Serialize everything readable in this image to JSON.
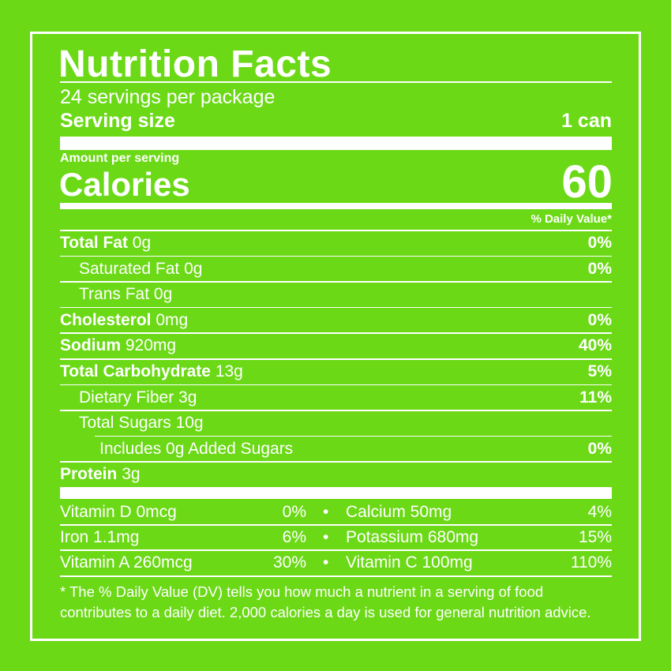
{
  "header": {
    "title": "Nutrition Facts",
    "servings": "24 servings per package",
    "serving_size_label": "Serving size",
    "serving_size_value": "1 can"
  },
  "calories": {
    "amount_label": "Amount per serving",
    "label": "Calories",
    "value": 60
  },
  "daily_value_header": "% Daily Value*",
  "nutrients": [
    {
      "name": "Total Fat",
      "amount": "0g",
      "dv": "0%"
    },
    {
      "name": "Saturated Fat",
      "amount": "0g",
      "dv": "0%"
    },
    {
      "name": "Trans Fat",
      "amount": "0g"
    },
    {
      "name": "Cholesterol",
      "amount": "0mg",
      "dv": "0%"
    },
    {
      "name": "Sodium",
      "amount": "920mg",
      "dv": "40%"
    },
    {
      "name": "Total Carbohydrate",
      "amount": "13g",
      "dv": "5%"
    },
    {
      "name": "Dietary Fiber",
      "amount": "3g",
      "dv": "11%"
    },
    {
      "name": "Total Sugars",
      "amount": "10g"
    },
    {
      "name": "Includes 0g Added Sugars",
      "dv": "0%"
    },
    {
      "name": "Protein",
      "amount": "3g"
    }
  ],
  "vitamins": [
    {
      "name": "Vitamin D 0mcg",
      "dv": "0%"
    },
    {
      "name": "Calcium 50mg",
      "dv": "4%"
    },
    {
      "name": "Iron 1.1mg",
      "dv": "6%"
    },
    {
      "name": "Potassium 680mg",
      "dv": "15%"
    },
    {
      "name": "Vitamin A 260mcg",
      "dv": "30%"
    },
    {
      "name": "Vitamin C 100mg",
      "dv": "110%"
    }
  ],
  "footnote": [
    "* The % Daily Value (DV) tells you how much a nutrient in a serving of food",
    "contributes to a daily diet. 2,000 calories a day is used for general nutrition advice."
  ]
}
